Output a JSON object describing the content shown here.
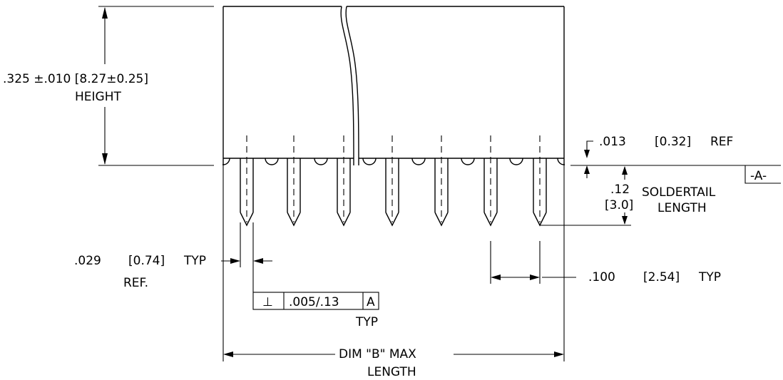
{
  "height_dim": {
    "value": ".325  ±.010 [8.27±0.25]",
    "label": "HEIGHT"
  },
  "ref_dim": {
    "value": ".013",
    "metric": "[0.32]",
    "suffix": "REF"
  },
  "datum": {
    "label": "-A-"
  },
  "soldertail": {
    "value": ".12",
    "metric": "[3.0]",
    "label_line1": "SOLDERTAIL",
    "label_line2": "LENGTH"
  },
  "pin_width": {
    "value": ".029",
    "metric": "[0.74]",
    "suffix": "TYP",
    "ref": "REF."
  },
  "pitch": {
    "value": ".100",
    "metric": "[2.54]",
    "suffix": "TYP"
  },
  "tolerance_frame": {
    "symbol": "⊥",
    "value": ".005/.13",
    "datum": "A",
    "note": "TYP"
  },
  "overall_dim": {
    "label": "DIM  \"B\"  MAX",
    "label_line2": "LENGTH"
  }
}
